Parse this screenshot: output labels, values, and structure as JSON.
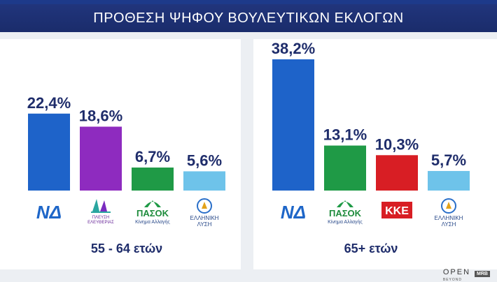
{
  "title": "ΠΡΟΘΕΣΗ ΨΗΦΟΥ ΒΟΥΛΕΥΤΙΚΩΝ ΕΚΛΟΓΩΝ",
  "colors": {
    "nd": "#1e63c9",
    "plefsi": "#8e2bbf",
    "pasok": "#1f9a46",
    "kke": "#d81e24",
    "elliniki_lysi": "#6ec3ea",
    "text": "#1f2d6b",
    "title_bg": "#1a2c6b"
  },
  "chart_data": [
    {
      "type": "bar",
      "group_label": "55 - 64 ετών",
      "categories": [
        "ΝΔ",
        "ΠΛΕΥΣΗ ΕΛΕΥΘΕΡΙΑΣ",
        "ΠΑΣΟΚ",
        "ΕΛΛΗΝΙΚΗ ΛΥΣΗ"
      ],
      "values": [
        22.4,
        18.6,
        6.7,
        5.6
      ],
      "labels": [
        "22,4%",
        "18,6%",
        "6,7%",
        "5,6%"
      ],
      "colors": [
        "#1e63c9",
        "#8e2bbf",
        "#1f9a46",
        "#6ec3ea"
      ],
      "logos": [
        "nd-logo",
        "plefsi-logo",
        "pasok-logo",
        "elliniki-lysi-logo"
      ],
      "ylim": [
        0,
        38.2
      ]
    },
    {
      "type": "bar",
      "group_label": "65+ ετών",
      "categories": [
        "ΝΔ",
        "ΠΑΣΟΚ",
        "ΚΚΕ",
        "ΕΛΛΗΝΙΚΗ ΛΥΣΗ"
      ],
      "values": [
        38.2,
        13.1,
        10.3,
        5.7
      ],
      "labels": [
        "38,2%",
        "13,1%",
        "10,3%",
        "5,7%"
      ],
      "colors": [
        "#1e63c9",
        "#1f9a46",
        "#d81e24",
        "#6ec3ea"
      ],
      "logos": [
        "nd-logo",
        "pasok-logo",
        "kke-logo",
        "elliniki-lysi-logo"
      ],
      "ylim": [
        0,
        38.2
      ]
    }
  ],
  "logo_text": {
    "nd": "ΝΔ",
    "pasok": "ΠΑΣΟΚ",
    "pasok_sub": "Κίνημα Αλλαγής",
    "kke": "ΚΚΕ",
    "plefsi_line1": "ΠΛΕΥΣΗ",
    "plefsi_line2": "ΕΛΕΥΘΕΡΙΑΣ",
    "lysi_line1": "ΕΛΛΗΝΙΚΗ",
    "lysi_line2": "ΛΥΣΗ"
  },
  "brand": {
    "open": "OPEN",
    "open_sub": "BEYOND",
    "mrb": "MRB"
  }
}
